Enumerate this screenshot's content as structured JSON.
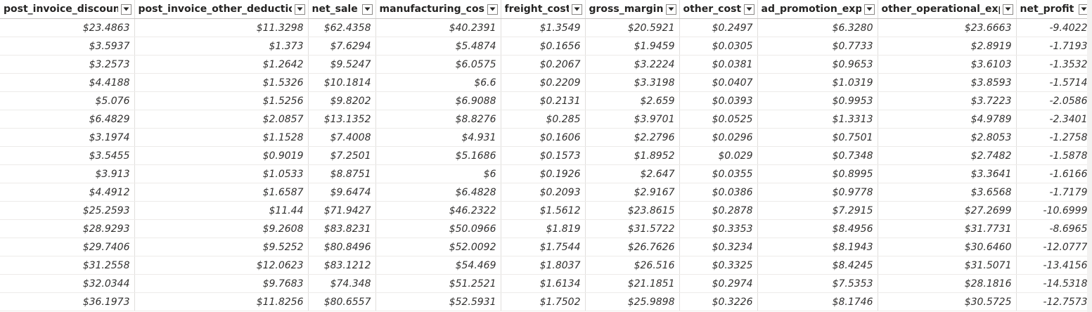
{
  "columns": [
    {
      "label": "post_invoice_discount"
    },
    {
      "label": "post_invoice_other_deduction"
    },
    {
      "label": "net_sale"
    },
    {
      "label": "manufacturing_cost"
    },
    {
      "label": "freight_cost"
    },
    {
      "label": "gross_margin"
    },
    {
      "label": "other_cost"
    },
    {
      "label": "ad_promotion_exp"
    },
    {
      "label": "other_operational_exp"
    },
    {
      "label": "net_profit"
    }
  ],
  "filter_icon": "chevron-down-icon",
  "rows": [
    [
      "$23.4863",
      "$11.3298",
      "$62.4358",
      "$40.2391",
      "$1.3549",
      "$20.5921",
      "$0.2497",
      "$6.3280",
      "$23.6663",
      "-9.4022"
    ],
    [
      "$3.5937",
      "$1.373",
      "$7.6294",
      "$5.4874",
      "$0.1656",
      "$1.9459",
      "$0.0305",
      "$0.7733",
      "$2.8919",
      "-1.7193"
    ],
    [
      "$3.2573",
      "$1.2642",
      "$9.5247",
      "$6.0575",
      "$0.2067",
      "$3.2224",
      "$0.0381",
      "$0.9653",
      "$3.6103",
      "-1.3532"
    ],
    [
      "$4.4188",
      "$1.5326",
      "$10.1814",
      "$6.6",
      "$0.2209",
      "$3.3198",
      "$0.0407",
      "$1.0319",
      "$3.8593",
      "-1.5714"
    ],
    [
      "$5.076",
      "$1.5256",
      "$9.8202",
      "$6.9088",
      "$0.2131",
      "$2.659",
      "$0.0393",
      "$0.9953",
      "$3.7223",
      "-2.0586"
    ],
    [
      "$6.4829",
      "$2.0857",
      "$13.1352",
      "$8.8276",
      "$0.285",
      "$3.9701",
      "$0.0525",
      "$1.3313",
      "$4.9789",
      "-2.3401"
    ],
    [
      "$3.1974",
      "$1.1528",
      "$7.4008",
      "$4.931",
      "$0.1606",
      "$2.2796",
      "$0.0296",
      "$0.7501",
      "$2.8053",
      "-1.2758"
    ],
    [
      "$3.5455",
      "$0.9019",
      "$7.2501",
      "$5.1686",
      "$0.1573",
      "$1.8952",
      "$0.029",
      "$0.7348",
      "$2.7482",
      "-1.5878"
    ],
    [
      "$3.913",
      "$1.0533",
      "$8.8751",
      "$6",
      "$0.1926",
      "$2.647",
      "$0.0355",
      "$0.8995",
      "$3.3641",
      "-1.6166"
    ],
    [
      "$4.4912",
      "$1.6587",
      "$9.6474",
      "$6.4828",
      "$0.2093",
      "$2.9167",
      "$0.0386",
      "$0.9778",
      "$3.6568",
      "-1.7179"
    ],
    [
      "$25.2593",
      "$11.44",
      "$71.9427",
      "$46.2322",
      "$1.5612",
      "$23.8615",
      "$0.2878",
      "$7.2915",
      "$27.2699",
      "-10.6999"
    ],
    [
      "$28.9293",
      "$9.2608",
      "$83.8231",
      "$50.0966",
      "$1.819",
      "$31.5722",
      "$0.3353",
      "$8.4956",
      "$31.7731",
      "-8.6965"
    ],
    [
      "$29.7406",
      "$9.5252",
      "$80.8496",
      "$52.0092",
      "$1.7544",
      "$26.7626",
      "$0.3234",
      "$8.1943",
      "$30.6460",
      "-12.0777"
    ],
    [
      "$31.2558",
      "$12.0623",
      "$83.1212",
      "$54.469",
      "$1.8037",
      "$26.516",
      "$0.3325",
      "$8.4245",
      "$31.5071",
      "-13.4156"
    ],
    [
      "$32.0344",
      "$9.7683",
      "$74.348",
      "$51.2521",
      "$1.6134",
      "$21.1851",
      "$0.2974",
      "$7.5353",
      "$28.1816",
      "-14.5318"
    ],
    [
      "$36.1973",
      "$11.8256",
      "$80.6557",
      "$52.5931",
      "$1.7502",
      "$25.9898",
      "$0.3226",
      "$8.1746",
      "$30.5725",
      "-12.7573"
    ]
  ]
}
